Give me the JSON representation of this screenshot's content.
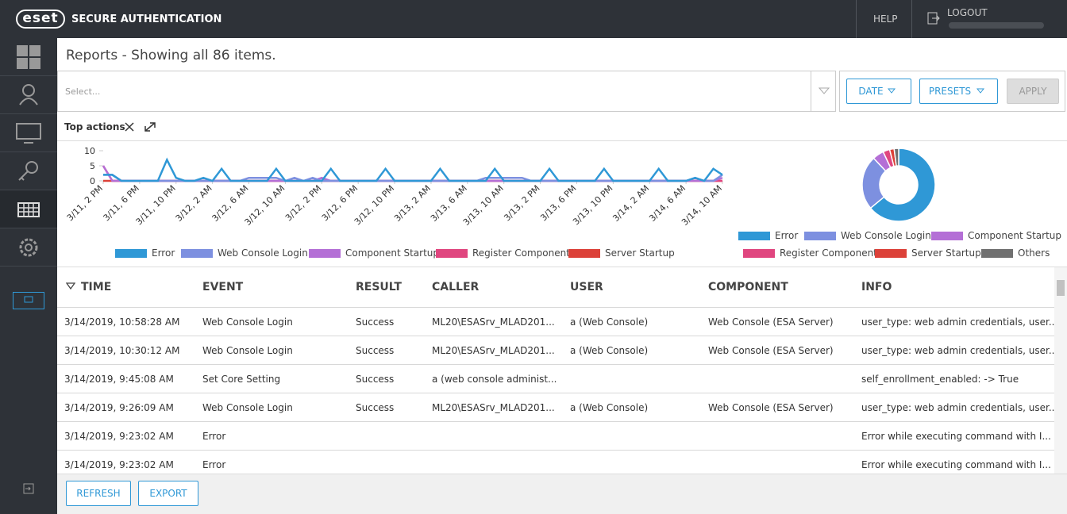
{
  "header": {
    "logo": "eset",
    "product": "SECURE AUTHENTICATION",
    "help": "HELP",
    "logout": "LOGOUT"
  },
  "page_title": "Reports - Showing all 86 items.",
  "filter": {
    "placeholder": "Select...",
    "date": "DATE",
    "presets": "PRESETS",
    "apply": "APPLY"
  },
  "panel_title": "Top actions",
  "chart_data": [
    {
      "type": "line",
      "categories": [
        "3/11, 2 PM",
        null,
        null,
        null,
        "3/11, 6 PM",
        null,
        null,
        null,
        "3/11, 10 PM",
        null,
        null,
        null,
        "3/12, 2 AM",
        null,
        null,
        null,
        "3/12, 6 AM",
        null,
        null,
        null,
        "3/12, 10 AM",
        null,
        null,
        null,
        "3/12, 2 PM",
        null,
        null,
        null,
        "3/12, 6 PM",
        null,
        null,
        null,
        "3/12, 10 PM",
        null,
        null,
        null,
        "3/13, 2 AM",
        null,
        null,
        null,
        "3/13, 6 AM",
        null,
        null,
        null,
        "3/13, 10 AM",
        null,
        null,
        null,
        "3/13, 2 PM",
        null,
        null,
        null,
        "3/13, 6 PM",
        null,
        null,
        null,
        "3/13, 10 PM",
        null,
        null,
        null,
        "3/14, 2 AM",
        null,
        null,
        null,
        "3/14, 6 AM",
        null,
        null,
        null,
        "3/14, 10 AM"
      ],
      "ylim": [
        0,
        10
      ],
      "yticks": [
        0,
        5,
        10
      ],
      "series": [
        {
          "name": "Error",
          "color": "#2f98d6",
          "values": [
            2,
            2,
            0,
            0,
            0,
            0,
            0,
            7,
            1,
            0,
            0,
            1,
            0,
            4,
            0,
            0,
            0,
            0,
            0,
            4,
            0,
            0,
            0,
            0,
            0,
            4,
            0,
            0,
            0,
            0,
            0,
            4,
            0,
            0,
            0,
            0,
            0,
            4,
            0,
            0,
            0,
            0,
            0,
            4,
            0,
            0,
            0,
            0,
            0,
            4,
            0,
            0,
            0,
            0,
            0,
            4,
            0,
            0,
            0,
            0,
            0,
            4,
            0,
            0,
            0,
            1,
            0,
            4,
            2
          ]
        },
        {
          "name": "Web Console Login",
          "color": "#7d90e0",
          "values": [
            2,
            2,
            0,
            0,
            0,
            0,
            0,
            0,
            0,
            0,
            0,
            0,
            0,
            0,
            0,
            0,
            1,
            1,
            1,
            1,
            0,
            1,
            0,
            1,
            0,
            0,
            0,
            0,
            0,
            0,
            0,
            0,
            0,
            0,
            0,
            0,
            0,
            0,
            0,
            0,
            0,
            0,
            1,
            1,
            1,
            1,
            1,
            0,
            0,
            0,
            0,
            0,
            0,
            0,
            0,
            0,
            0,
            0,
            0,
            0,
            0,
            0,
            0,
            0,
            0,
            1,
            0,
            0,
            2
          ]
        },
        {
          "name": "Component Startup",
          "color": "#b46fd6",
          "values": [
            5,
            0,
            0,
            0,
            0,
            0,
            0,
            0,
            0,
            0,
            0,
            0,
            0,
            0,
            0,
            0,
            0,
            0,
            0,
            0,
            0,
            0,
            0,
            0,
            1,
            0,
            0,
            0,
            0,
            0,
            0,
            0,
            0,
            0,
            0,
            0,
            0,
            0,
            0,
            0,
            0,
            0,
            0,
            0,
            0,
            0,
            0,
            0,
            0,
            0,
            0,
            0,
            0,
            0,
            0,
            0,
            0,
            0,
            0,
            0,
            0,
            0,
            0,
            0,
            0,
            0,
            0,
            0,
            1
          ]
        },
        {
          "name": "Register Component",
          "color": "#e0467f",
          "values": [
            5,
            0,
            0,
            0,
            0,
            0,
            0,
            0,
            0,
            0,
            0,
            0,
            0,
            0,
            0,
            0,
            0,
            0,
            0,
            0,
            0,
            0,
            0,
            0,
            0,
            0,
            0,
            0,
            0,
            0,
            0,
            0,
            0,
            0,
            0,
            0,
            0,
            0,
            0,
            0,
            0,
            0,
            0,
            0,
            0,
            0,
            0,
            0,
            0,
            0,
            0,
            0,
            0,
            0,
            0,
            0,
            0,
            0,
            0,
            0,
            0,
            0,
            0,
            0,
            0,
            0,
            0,
            0,
            0
          ]
        },
        {
          "name": "Server Startup",
          "color": "#dc4139",
          "values": [
            0,
            0,
            0,
            0,
            0,
            0,
            0,
            0,
            0,
            0,
            0,
            0,
            0,
            0,
            0,
            0,
            0,
            0,
            0,
            0,
            0,
            0,
            0,
            0,
            0,
            0,
            0,
            0,
            0,
            0,
            0,
            0,
            0,
            0,
            0,
            0,
            0,
            0,
            0,
            0,
            0,
            0,
            0,
            0,
            0,
            0,
            0,
            0,
            0,
            0,
            0,
            0,
            0,
            0,
            0,
            0,
            0,
            0,
            0,
            0,
            0,
            0,
            0,
            0,
            0,
            0,
            0,
            0,
            0
          ]
        }
      ]
    },
    {
      "type": "pie",
      "categories": [
        "Error",
        "Web Console Login",
        "Component Startup",
        "Register Component",
        "Server Startup",
        "Others"
      ],
      "values": [
        64,
        24,
        5,
        3,
        2,
        2
      ],
      "colors": [
        "#2f98d6",
        "#7d90e0",
        "#b46fd6",
        "#e0467f",
        "#dc4139",
        "#707070"
      ]
    }
  ],
  "table": {
    "columns": [
      "TIME",
      "EVENT",
      "RESULT",
      "CALLER",
      "USER",
      "COMPONENT",
      "INFO"
    ],
    "rows": [
      [
        "3/14/2019, 10:58:28 AM",
        "Web Console Login",
        "Success",
        "ML20\\ESASrv_MLAD201...",
        "a (Web Console)",
        "Web Console (ESA Server)",
        "user_type: web admin credentials, user..."
      ],
      [
        "3/14/2019, 10:30:12 AM",
        "Web Console Login",
        "Success",
        "ML20\\ESASrv_MLAD201...",
        "a (Web Console)",
        "Web Console (ESA Server)",
        "user_type: web admin credentials, user..."
      ],
      [
        "3/14/2019, 9:45:08 AM",
        "Set Core Setting",
        "Success",
        "a (web console administ...",
        null,
        null,
        "self_enrollment_enabled: -> True"
      ],
      [
        "3/14/2019, 9:26:09 AM",
        "Web Console Login",
        "Success",
        "ML20\\ESASrv_MLAD201...",
        "a (Web Console)",
        "Web Console (ESA Server)",
        "user_type: web admin credentials, user..."
      ],
      [
        "3/14/2019, 9:23:02 AM",
        "Error",
        null,
        null,
        null,
        null,
        "Error while executing command with I..."
      ],
      [
        "3/14/2019, 9:23:02 AM",
        "Error",
        null,
        null,
        null,
        null,
        "Error while executing command with I..."
      ]
    ]
  },
  "footer": {
    "refresh": "REFRESH",
    "export": "EXPORT"
  }
}
